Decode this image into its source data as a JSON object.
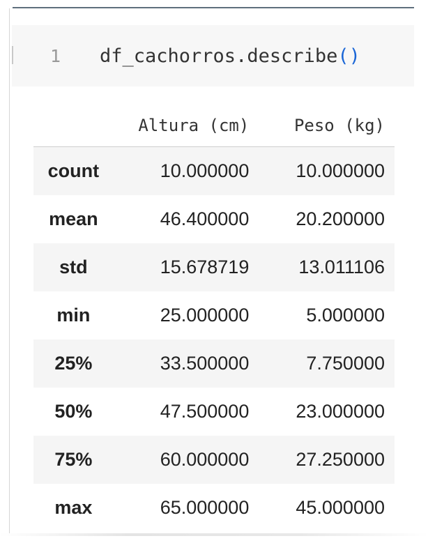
{
  "cell": {
    "line_number": "1",
    "code_prefix": "df_cachorros.describe",
    "code_parens": "()"
  },
  "table": {
    "columns": [
      "Altura (cm)",
      "Peso (kg)"
    ],
    "rows": [
      {
        "label": "count",
        "values": [
          "10.000000",
          "10.000000"
        ]
      },
      {
        "label": "mean",
        "values": [
          "46.400000",
          "20.200000"
        ]
      },
      {
        "label": "std",
        "values": [
          "15.678719",
          "13.011106"
        ]
      },
      {
        "label": "min",
        "values": [
          "25.000000",
          "5.000000"
        ]
      },
      {
        "label": "25%",
        "values": [
          "33.500000",
          "7.750000"
        ]
      },
      {
        "label": "50%",
        "values": [
          "47.500000",
          "23.000000"
        ]
      },
      {
        "label": "75%",
        "values": [
          "60.000000",
          "27.250000"
        ]
      },
      {
        "label": "max",
        "values": [
          "65.000000",
          "45.000000"
        ]
      }
    ]
  },
  "colors": {
    "code_text": "#333333",
    "paren": "#1a66d6",
    "line_number": "#999999",
    "input_bg": "#f7f7f7",
    "row_stripe": "#f5f5f5"
  }
}
